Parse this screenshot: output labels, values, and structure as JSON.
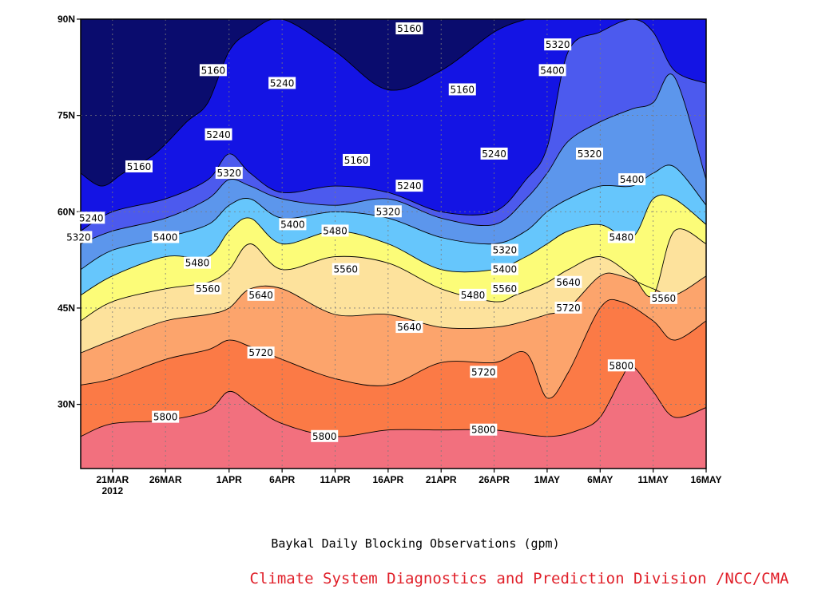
{
  "chart_data": {
    "type": "heatmap",
    "title": "Baykal Daily Blocking Observations (gpm)",
    "credit": "Climate System Diagnostics and Prediction Division /NCC/CMA",
    "x_axis": {
      "ticks": [
        {
          "label": "21MAR",
          "sublabel": "2012",
          "day": 5
        },
        {
          "label": "26MAR",
          "day": 10
        },
        {
          "label": "1APR",
          "day": 16
        },
        {
          "label": "6APR",
          "day": 21
        },
        {
          "label": "11APR",
          "day": 26
        },
        {
          "label": "16APR",
          "day": 31
        },
        {
          "label": "21APR",
          "day": 36
        },
        {
          "label": "26APR",
          "day": 41
        },
        {
          "label": "1MAY",
          "day": 46
        },
        {
          "label": "6MAY",
          "day": 51
        },
        {
          "label": "11MAY",
          "day": 56
        },
        {
          "label": "16MAY",
          "day": 61
        }
      ],
      "range": [
        2,
        61
      ]
    },
    "y_axis": {
      "ticks": [
        {
          "label": "30N",
          "lat": 30
        },
        {
          "label": "45N",
          "lat": 45
        },
        {
          "label": "60N",
          "lat": 60
        },
        {
          "label": "75N",
          "lat": 75
        },
        {
          "label": "90N",
          "lat": 90
        }
      ],
      "range": [
        20,
        90
      ]
    },
    "grid": true,
    "contour_levels": [
      5160,
      5240,
      5320,
      5400,
      5480,
      5560,
      5640,
      5720,
      5800
    ],
    "fill_colors": {
      "above_5800": "#f2707e",
      "5720_5800": "#fb7a46",
      "5640_5720": "#fca46c",
      "5560_5640": "#fde29c",
      "5480_5560": "#fcfc78",
      "5400_5480": "#66c6fc",
      "5320_5400": "#5c96ec",
      "5240_5320": "#4c5aee",
      "5160_5240": "#1414e4",
      "below_5160": "#0a0c6e"
    },
    "isolines": [
      {
        "level": 5800,
        "days": [
          2,
          5,
          10,
          14,
          16,
          18,
          21,
          26,
          31,
          36,
          41,
          46,
          49,
          51,
          53,
          54,
          56,
          58,
          61
        ],
        "lat": [
          25,
          27,
          27.5,
          29,
          32,
          30,
          27,
          25,
          26,
          26,
          26,
          25,
          26,
          28,
          34,
          36,
          32,
          28,
          29.5
        ]
      },
      {
        "level": 5720,
        "days": [
          2,
          5,
          10,
          14,
          16,
          18,
          21,
          26,
          31,
          36,
          41,
          44,
          46,
          48,
          51,
          53,
          56,
          58,
          61
        ],
        "lat": [
          33,
          34,
          37,
          38.5,
          40,
          39,
          37,
          34,
          33,
          36.5,
          36.5,
          38,
          31,
          35,
          45,
          46,
          43,
          40,
          43
        ]
      },
      {
        "level": 5640,
        "days": [
          2,
          5,
          10,
          14,
          16,
          18,
          21,
          26,
          31,
          36,
          41,
          44,
          46,
          48,
          51,
          53,
          56,
          58,
          61
        ],
        "lat": [
          38,
          40,
          43,
          44,
          45,
          48,
          48,
          44,
          44,
          42,
          42,
          43,
          44,
          45,
          50,
          50,
          48,
          47,
          50
        ]
      },
      {
        "level": 5560,
        "days": [
          2,
          5,
          10,
          14,
          16,
          18,
          21,
          26,
          31,
          36,
          41,
          43,
          46,
          48,
          51,
          54,
          56,
          58,
          61
        ],
        "lat": [
          43,
          46,
          48,
          49,
          51,
          55,
          51,
          53,
          52,
          48,
          46,
          47,
          49,
          51,
          53,
          50,
          47,
          57,
          55
        ]
      },
      {
        "level": 5480,
        "days": [
          2,
          5,
          10,
          14,
          16,
          18,
          21,
          26,
          31,
          36,
          41,
          44,
          46,
          48,
          51,
          54,
          56,
          58,
          61
        ],
        "lat": [
          47,
          50,
          53,
          53,
          57,
          59,
          55,
          57,
          55,
          51,
          51,
          53,
          55,
          57,
          58,
          56,
          62,
          62,
          58
        ]
      },
      {
        "level": 5400,
        "days": [
          2,
          5,
          10,
          14,
          16,
          18,
          21,
          26,
          31,
          36,
          41,
          44,
          46,
          48,
          51,
          54,
          56,
          58,
          61
        ],
        "lat": [
          51,
          54,
          56,
          58,
          61,
          62,
          59,
          60,
          59,
          56,
          55,
          57,
          60,
          62,
          64,
          64,
          66,
          67,
          61
        ]
      },
      {
        "level": 5320,
        "days": [
          2,
          5,
          10,
          14,
          16,
          18,
          21,
          26,
          31,
          36,
          41,
          44,
          46,
          48,
          51,
          54,
          56,
          58,
          61
        ],
        "lat": [
          55,
          57,
          59,
          62,
          65,
          64,
          62,
          61,
          62,
          59,
          58,
          62,
          66,
          71,
          74,
          76,
          77,
          81,
          65
        ]
      },
      {
        "level": 5240,
        "days": [
          2,
          5,
          10,
          14,
          16,
          18,
          21,
          26,
          31,
          36,
          41,
          44,
          46,
          48,
          51,
          54,
          56,
          58,
          61
        ],
        "lat": [
          57,
          60,
          62,
          65,
          69,
          66,
          63,
          64,
          63,
          60,
          60,
          65,
          70,
          85,
          88,
          90,
          88,
          82,
          80
        ]
      },
      {
        "level": 5160,
        "days": [
          2,
          4,
          6,
          9,
          12,
          14,
          16,
          18,
          21,
          26,
          31,
          36,
          41,
          44
        ],
        "lat": [
          66,
          64,
          66,
          69,
          74,
          77,
          85,
          88,
          90,
          85,
          79,
          82,
          88,
          90
        ]
      }
    ],
    "labels": [
      {
        "text": "5160",
        "day": 7.5,
        "lat": 67
      },
      {
        "text": "5160",
        "day": 14.5,
        "lat": 82
      },
      {
        "text": "5160",
        "day": 28,
        "lat": 68
      },
      {
        "text": "5160",
        "day": 33,
        "lat": 88.5
      },
      {
        "text": "5160",
        "day": 38,
        "lat": 79
      },
      {
        "text": "5240",
        "day": 3,
        "lat": 59
      },
      {
        "text": "5240",
        "day": 15,
        "lat": 72
      },
      {
        "text": "5240",
        "day": 21,
        "lat": 80
      },
      {
        "text": "5240",
        "day": 33,
        "lat": 64
      },
      {
        "text": "5240",
        "day": 41,
        "lat": 69
      },
      {
        "text": "5320",
        "day": 1.8,
        "lat": 56
      },
      {
        "text": "5320",
        "day": 16,
        "lat": 66
      },
      {
        "text": "5320",
        "day": 31,
        "lat": 60
      },
      {
        "text": "5320",
        "day": 42,
        "lat": 54
      },
      {
        "text": "5320",
        "day": 47,
        "lat": 86
      },
      {
        "text": "5320",
        "day": 50,
        "lat": 69
      },
      {
        "text": "5400",
        "day": 10,
        "lat": 56
      },
      {
        "text": "5400",
        "day": 22,
        "lat": 58
      },
      {
        "text": "5400",
        "day": 42,
        "lat": 51
      },
      {
        "text": "5400",
        "day": 46.5,
        "lat": 82
      },
      {
        "text": "5400",
        "day": 54,
        "lat": 65
      },
      {
        "text": "5480",
        "day": 13,
        "lat": 52
      },
      {
        "text": "5480",
        "day": 26,
        "lat": 57
      },
      {
        "text": "5480",
        "day": 39,
        "lat": 47
      },
      {
        "text": "5480",
        "day": 53,
        "lat": 56
      },
      {
        "text": "5560",
        "day": 14,
        "lat": 48
      },
      {
        "text": "5560",
        "day": 27,
        "lat": 51
      },
      {
        "text": "5560",
        "day": 42,
        "lat": 48
      },
      {
        "text": "5560",
        "day": 57,
        "lat": 46.5
      },
      {
        "text": "5640",
        "day": 19,
        "lat": 47
      },
      {
        "text": "5640",
        "day": 33,
        "lat": 42
      },
      {
        "text": "5640",
        "day": 48,
        "lat": 49
      },
      {
        "text": "5720",
        "day": 19,
        "lat": 38
      },
      {
        "text": "5720",
        "day": 40,
        "lat": 35
      },
      {
        "text": "5720",
        "day": 48,
        "lat": 45
      },
      {
        "text": "5800",
        "day": 10,
        "lat": 28
      },
      {
        "text": "5800",
        "day": 25,
        "lat": 25
      },
      {
        "text": "5800",
        "day": 40,
        "lat": 26
      },
      {
        "text": "5800",
        "day": 53,
        "lat": 36
      }
    ]
  }
}
